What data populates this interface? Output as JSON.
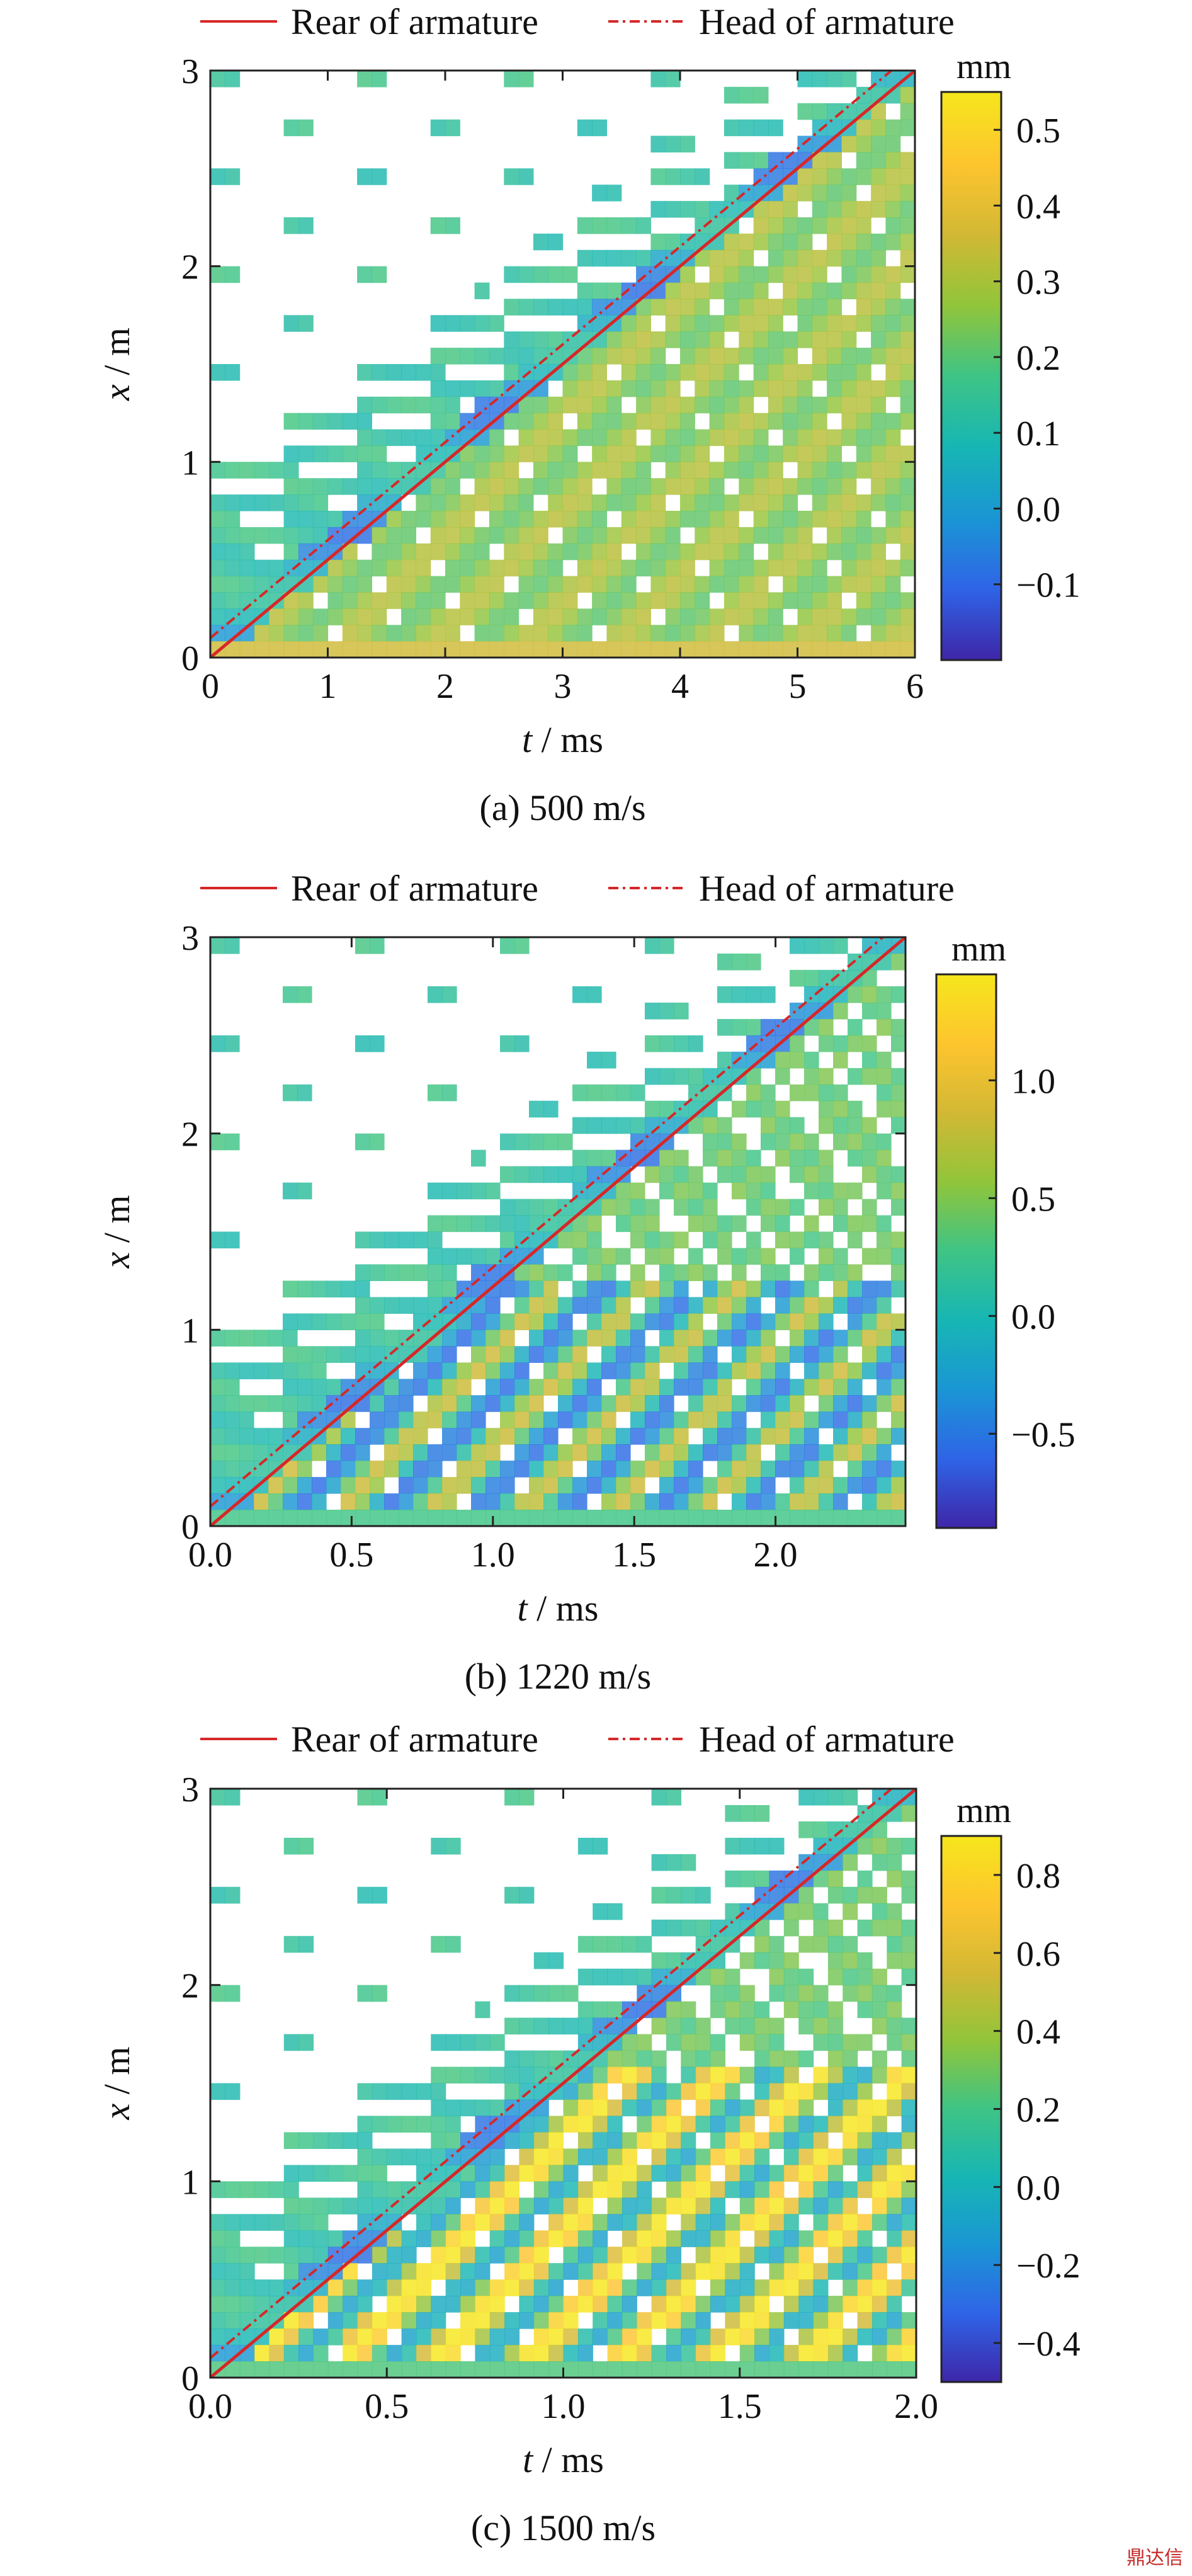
{
  "chart_data": [
    {
      "type": "heatmap",
      "caption": "(a) 500 m/s",
      "legend": [
        {
          "label": "Rear of armature",
          "style": "solid",
          "color": "#d62728"
        },
        {
          "label": "Head of armature",
          "style": "dashdot",
          "color": "#d62728"
        }
      ],
      "xlabel_var": "t",
      "xlabel_unit": " / ms",
      "ylabel_var": "x",
      "ylabel_unit": " / m",
      "xlim": [
        0,
        6
      ],
      "ylim": [
        0,
        3
      ],
      "xticks": [
        0,
        1,
        2,
        3,
        4,
        5,
        6
      ],
      "xtick_labels": [
        "0",
        "1",
        "2",
        "3",
        "4",
        "5",
        "6"
      ],
      "yticks": [
        0,
        1,
        2,
        3
      ],
      "ytick_labels": [
        "0",
        "1",
        "2",
        "3"
      ],
      "armature_rear": {
        "t": [
          0,
          6
        ],
        "x": [
          0,
          3
        ]
      },
      "armature_head": {
        "t": [
          0,
          5.8
        ],
        "x": [
          0.1,
          3
        ]
      },
      "colorbar": {
        "unit": "mm",
        "min": -0.2,
        "max": 0.55,
        "ticks": [
          0.5,
          0.4,
          0.3,
          0.2,
          0.1,
          0.0,
          -0.1
        ],
        "tick_labels": [
          "0.5",
          "0.4",
          "0.3",
          "0.2",
          "0.1",
          "0.0",
          "−0.1"
        ]
      }
    },
    {
      "type": "heatmap",
      "caption": "(b) 1220 m/s",
      "legend": [
        {
          "label": "Rear of armature",
          "style": "solid",
          "color": "#d62728"
        },
        {
          "label": "Head of armature",
          "style": "dashdot",
          "color": "#d62728"
        }
      ],
      "xlabel_var": "t",
      "xlabel_unit": " / ms",
      "ylabel_var": "x",
      "ylabel_unit": " / m",
      "xlim": [
        0,
        2.46
      ],
      "ylim": [
        0,
        3
      ],
      "xticks": [
        0,
        0.5,
        1.0,
        1.5,
        2.0
      ],
      "xtick_labels": [
        "0.0",
        "0.5",
        "1.0",
        "1.5",
        "2.0"
      ],
      "yticks": [
        0,
        1,
        2,
        3
      ],
      "ytick_labels": [
        "0",
        "1",
        "2",
        "3"
      ],
      "armature_rear": {
        "t": [
          0,
          2.46
        ],
        "x": [
          0,
          3
        ]
      },
      "armature_head": {
        "t": [
          0,
          2.38
        ],
        "x": [
          0.1,
          3
        ]
      },
      "colorbar": {
        "unit": "mm",
        "min": -0.9,
        "max": 1.45,
        "ticks": [
          1.0,
          0.5,
          0.0,
          -0.5
        ],
        "tick_labels": [
          "1.0",
          "0.5",
          "0.0",
          "−0.5"
        ]
      }
    },
    {
      "type": "heatmap",
      "caption": "(c) 1500 m/s",
      "legend": [
        {
          "label": "Rear of armature",
          "style": "solid",
          "color": "#d62728"
        },
        {
          "label": "Head of armature",
          "style": "dashdot",
          "color": "#d62728"
        }
      ],
      "xlabel_var": "t",
      "xlabel_unit": " / ms",
      "ylabel_var": "x",
      "ylabel_unit": " / m",
      "xlim": [
        0,
        2.0
      ],
      "ylim": [
        0,
        3
      ],
      "xticks": [
        0,
        0.5,
        1.0,
        1.5,
        2.0
      ],
      "xtick_labels": [
        "0.0",
        "0.5",
        "1.0",
        "1.5",
        "2.0"
      ],
      "yticks": [
        0,
        1,
        2,
        3
      ],
      "ytick_labels": [
        "0",
        "1",
        "2",
        "3"
      ],
      "armature_rear": {
        "t": [
          0,
          2.0
        ],
        "x": [
          0,
          3
        ]
      },
      "armature_head": {
        "t": [
          0,
          1.93
        ],
        "x": [
          0.1,
          3
        ]
      },
      "colorbar": {
        "unit": "mm",
        "min": -0.5,
        "max": 0.9,
        "ticks": [
          0.8,
          0.6,
          0.4,
          0.2,
          0.0,
          -0.2,
          -0.4
        ],
        "tick_labels": [
          "0.8",
          "0.6",
          "0.4",
          "0.2",
          "0.0",
          "−0.2",
          "−0.4"
        ]
      }
    }
  ],
  "colormap": [
    "#3e26a8",
    "#2f64e7",
    "#1a96d4",
    "#17b6b4",
    "#3ec485",
    "#91c53a",
    "#d3b834",
    "#fdc52e",
    "#f6e61c"
  ],
  "watermark": "鼎达信"
}
